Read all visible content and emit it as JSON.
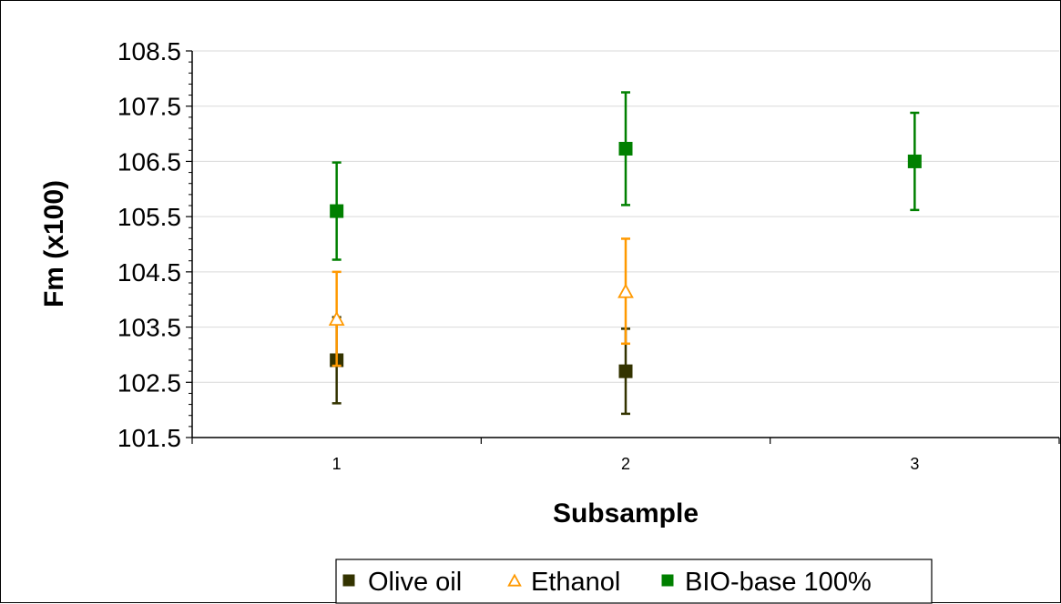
{
  "chart_data": {
    "type": "scatter",
    "title": "",
    "xlabel": "Subsample",
    "ylabel": "Fm (x100)",
    "categories": [
      "1",
      "2",
      "3"
    ],
    "xlim": [
      0.5,
      3.5
    ],
    "ylim": [
      101.5,
      108.5
    ],
    "y_ticks": [
      "101.5",
      "102.5",
      "103.5",
      "104.5",
      "105.5",
      "106.5",
      "107.5",
      "108.5"
    ],
    "grid": true,
    "legend_position": "bottom",
    "series": [
      {
        "name": "Olive oil",
        "marker": "filled-square",
        "color": "#333300",
        "points": [
          {
            "x": 1,
            "y": 102.9,
            "err": 0.78
          },
          {
            "x": 2,
            "y": 102.7,
            "err": 0.77
          }
        ]
      },
      {
        "name": "Ethanol",
        "marker": "open-triangle",
        "color": "#ff9900",
        "points": [
          {
            "x": 1,
            "y": 103.65,
            "err": 0.85
          },
          {
            "x": 2,
            "y": 104.15,
            "err": 0.95
          }
        ]
      },
      {
        "name": "BIO-base 100%",
        "marker": "filled-square",
        "color": "#008000",
        "points": [
          {
            "x": 1,
            "y": 105.6,
            "err": 0.88
          },
          {
            "x": 2,
            "y": 106.73,
            "err": 1.02
          },
          {
            "x": 3,
            "y": 106.5,
            "err": 0.88
          }
        ]
      }
    ]
  }
}
